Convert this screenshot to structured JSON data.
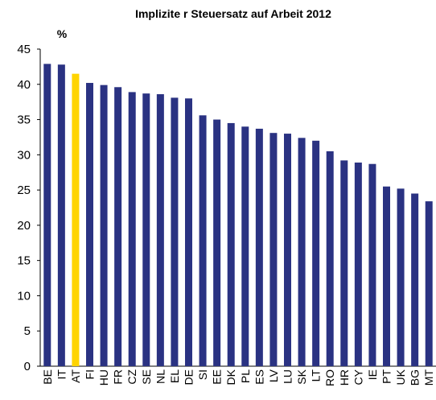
{
  "chart_data": {
    "type": "bar",
    "title": "Implizite r Steuersatz auf Arbeit 2012",
    "unit_label": "%",
    "categories": [
      "BE",
      "IT",
      "AT",
      "FI",
      "HU",
      "FR",
      "CZ",
      "SE",
      "NL",
      "EL",
      "DE",
      "SI",
      "EE",
      "DK",
      "PL",
      "ES",
      "LV",
      "LU",
      "SK",
      "LT",
      "RO",
      "HR",
      "CY",
      "IE",
      "PT",
      "UK",
      "BG",
      "MT"
    ],
    "values": [
      42.9,
      42.8,
      41.5,
      40.2,
      39.9,
      39.6,
      38.9,
      38.7,
      38.6,
      38.1,
      38.0,
      35.6,
      35.0,
      34.5,
      34.0,
      33.7,
      33.1,
      33.0,
      32.4,
      32.0,
      30.5,
      29.2,
      28.9,
      28.7,
      25.5,
      25.2,
      24.5,
      23.4
    ],
    "colors": [
      "#2a3282",
      "#2a3282",
      "#ffd400",
      "#2a3282",
      "#2a3282",
      "#2a3282",
      "#2a3282",
      "#2a3282",
      "#2a3282",
      "#2a3282",
      "#2a3282",
      "#2a3282",
      "#2a3282",
      "#2a3282",
      "#2a3282",
      "#2a3282",
      "#2a3282",
      "#2a3282",
      "#2a3282",
      "#2a3282",
      "#2a3282",
      "#2a3282",
      "#2a3282",
      "#2a3282",
      "#2a3282",
      "#2a3282",
      "#2a3282",
      "#2a3282"
    ],
    "ylim": [
      0,
      45
    ],
    "yticks": [
      0,
      5,
      10,
      15,
      20,
      25,
      30,
      35,
      40,
      45
    ],
    "grid": false
  }
}
